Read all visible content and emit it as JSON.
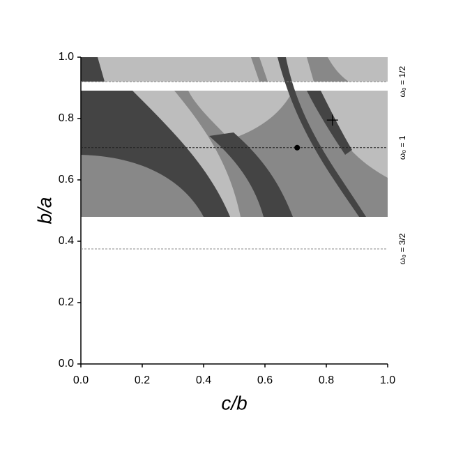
{
  "chart_data": {
    "type": "region",
    "xlabel": "c/b",
    "ylabel": "b/a",
    "xlim": [
      0,
      1
    ],
    "ylim": [
      0,
      1
    ],
    "xticks": [
      {
        "value": 0,
        "label": "0.0"
      },
      0.2,
      0.4,
      0.6,
      0.8,
      {
        "value": 1,
        "label": "1.0"
      }
    ],
    "yticks": [
      {
        "value": 0,
        "label": "0.0"
      },
      0.2,
      0.4,
      0.6,
      0.8,
      {
        "value": 1,
        "label": "1.0"
      }
    ],
    "hlines": [
      {
        "y": 0.92,
        "label": "ω₀ = 1/2",
        "color": "#888888"
      },
      {
        "y": 0.705,
        "label": "ω₀ = 1",
        "color": "#222222"
      },
      {
        "y": 0.375,
        "label": "ω₀ = 3/2",
        "color": "#888888"
      }
    ],
    "markers": [
      {
        "x": 0.705,
        "y": 0.705,
        "symbol": "circle"
      },
      {
        "x": 0.82,
        "y": 0.795,
        "symbol": "plus"
      }
    ]
  }
}
